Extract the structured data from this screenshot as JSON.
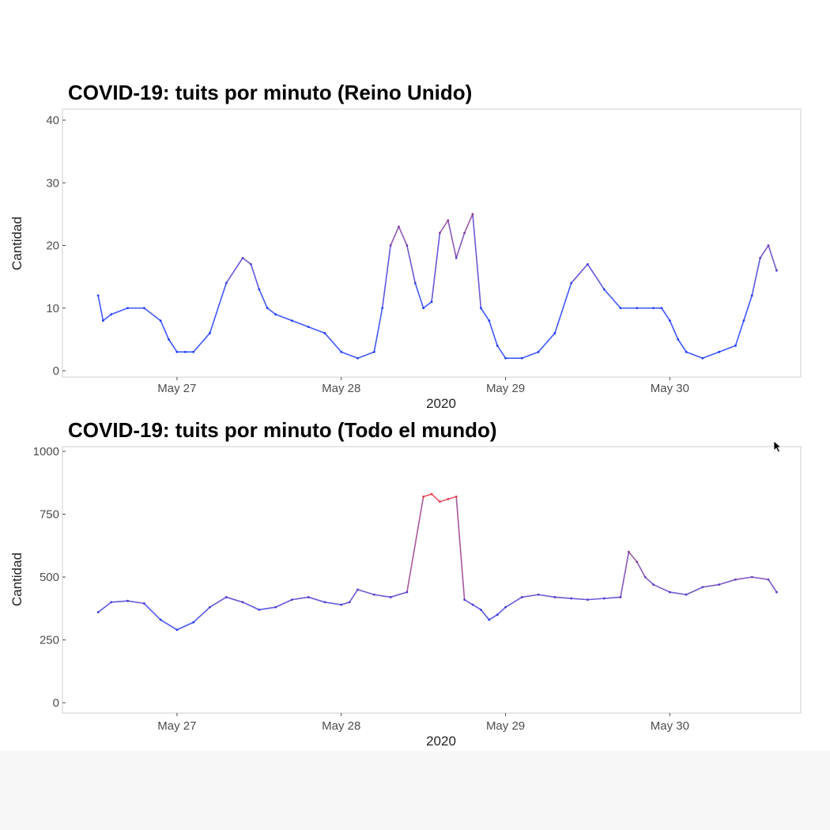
{
  "colors": {
    "low": "#1f3bff",
    "high": "#ff3a2a",
    "panel_border": "#cfcfcf",
    "text": "#222222"
  },
  "chart_data": [
    {
      "type": "line",
      "title": "COVID-19: tuits por minuto (Reino Unido)",
      "xlabel": "2020",
      "ylabel": "Cantidad",
      "xlim": [
        0,
        4.22
      ],
      "ylim": [
        0,
        40
      ],
      "grid": false,
      "x_ticks": [
        {
          "label": "May 27",
          "day": 0.5
        },
        {
          "label": "May 28",
          "day": 1.5
        },
        {
          "label": "May 29",
          "day": 2.5
        },
        {
          "label": "May 30",
          "day": 3.5
        }
      ],
      "y_ticks": [
        {
          "label": "0",
          "value": 0
        },
        {
          "label": "10",
          "value": 10
        },
        {
          "label": "20",
          "value": 20
        },
        {
          "label": "30",
          "value": 30
        },
        {
          "label": "40",
          "value": 40
        }
      ],
      "color_scale": "blue (low) to red (high)",
      "series": [
        {
          "x_days": [
            0.02,
            0.05,
            0.1,
            0.2,
            0.3,
            0.4,
            0.45,
            0.5,
            0.55,
            0.6,
            0.7,
            0.8,
            0.9,
            0.95,
            1.0,
            1.05,
            1.1,
            1.2,
            1.3,
            1.4,
            1.5,
            1.6,
            1.7,
            1.75,
            1.8,
            1.85,
            1.9,
            1.95,
            2.0,
            2.05,
            2.1,
            2.15,
            2.2,
            2.25,
            2.3,
            2.35,
            2.4,
            2.45,
            2.5,
            2.6,
            2.7,
            2.8,
            2.9,
            3.0,
            3.1,
            3.2,
            3.3,
            3.4,
            3.45,
            3.5,
            3.55,
            3.6,
            3.7,
            3.8,
            3.9,
            3.95,
            4.0,
            4.05,
            4.1,
            4.15
          ],
          "y": [
            12,
            8,
            9,
            10,
            10,
            8,
            5,
            3,
            3,
            3,
            6,
            14,
            18,
            17,
            13,
            10,
            9,
            8,
            7,
            6,
            3,
            2,
            3,
            10,
            20,
            23,
            20,
            14,
            10,
            11,
            22,
            24,
            18,
            22,
            25,
            10,
            8,
            4,
            2,
            2,
            3,
            6,
            14,
            17,
            13,
            10,
            10,
            10,
            10,
            8,
            5,
            3,
            2,
            3,
            4,
            8,
            12,
            18,
            20,
            16
          ]
        }
      ]
    },
    {
      "type": "line",
      "title": "COVID-19: tuits por minuto (Todo el mundo)",
      "xlabel": "2020",
      "ylabel": "Cantidad",
      "xlim": [
        0,
        4.22
      ],
      "ylim": [
        0,
        1000
      ],
      "grid": false,
      "x_ticks": [
        {
          "label": "May 27",
          "day": 0.5
        },
        {
          "label": "May 28",
          "day": 1.5
        },
        {
          "label": "May 29",
          "day": 2.5
        },
        {
          "label": "May 30",
          "day": 3.5
        }
      ],
      "y_ticks": [
        {
          "label": "0",
          "value": 0
        },
        {
          "label": "250",
          "value": 250
        },
        {
          "label": "500",
          "value": 500
        },
        {
          "label": "750",
          "value": 750
        },
        {
          "label": "1000",
          "value": 1000
        }
      ],
      "color_scale": "blue (low) to red (high)",
      "series": [
        {
          "x_days": [
            0.02,
            0.1,
            0.2,
            0.3,
            0.4,
            0.5,
            0.6,
            0.7,
            0.8,
            0.9,
            1.0,
            1.1,
            1.2,
            1.3,
            1.4,
            1.5,
            1.55,
            1.6,
            1.7,
            1.8,
            1.9,
            2.0,
            2.05,
            2.1,
            2.15,
            2.2,
            2.25,
            2.3,
            2.35,
            2.4,
            2.45,
            2.5,
            2.6,
            2.7,
            2.8,
            2.9,
            3.0,
            3.1,
            3.2,
            3.25,
            3.3,
            3.35,
            3.4,
            3.5,
            3.6,
            3.7,
            3.8,
            3.9,
            4.0,
            4.1,
            4.15
          ],
          "y": [
            360,
            400,
            405,
            395,
            330,
            290,
            320,
            380,
            420,
            400,
            370,
            380,
            410,
            420,
            400,
            390,
            400,
            450,
            430,
            420,
            440,
            820,
            830,
            800,
            810,
            820,
            410,
            390,
            370,
            330,
            350,
            380,
            420,
            430,
            420,
            415,
            410,
            415,
            420,
            600,
            560,
            500,
            470,
            440,
            430,
            460,
            470,
            490,
            500,
            490,
            440
          ]
        }
      ]
    }
  ]
}
